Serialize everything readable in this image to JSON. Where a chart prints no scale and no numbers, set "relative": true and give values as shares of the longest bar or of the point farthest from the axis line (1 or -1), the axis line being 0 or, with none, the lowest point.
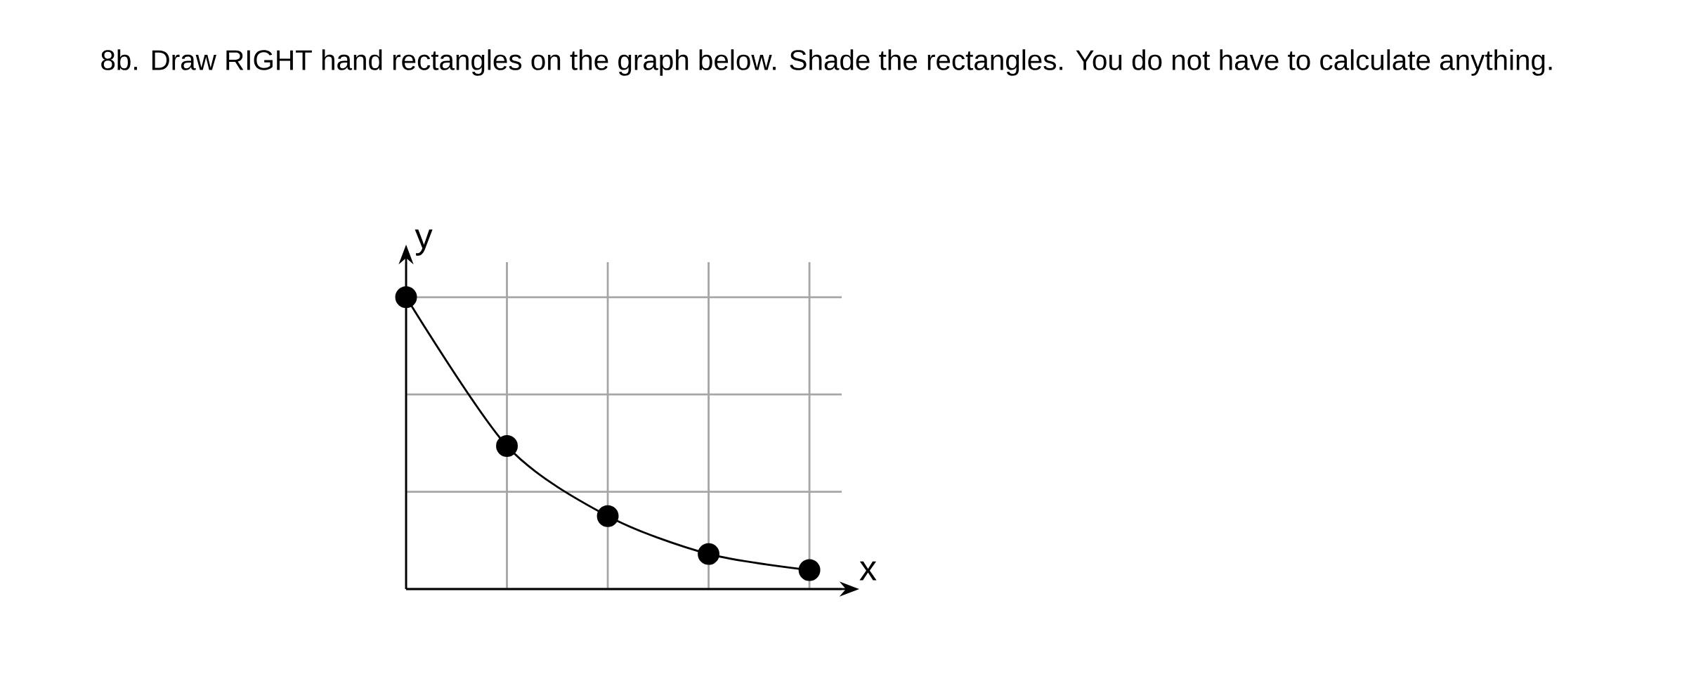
{
  "chart_data": {
    "type": "line",
    "title": "8b. Draw RIGHT hand rectangles on the graph below. Shade the rectangles. You do not have to calculate anything.",
    "xlabel": "x",
    "ylabel": "y",
    "relative": true,
    "categories": [
      null,
      null,
      null,
      null,
      null
    ],
    "series": [
      {
        "color": "#000000",
        "values": [
          1,
          0.49,
          0.25,
          0.12,
          0.065
        ]
      }
    ],
    "marker": "circle",
    "line_style": "solid",
    "grid": true
  }
}
